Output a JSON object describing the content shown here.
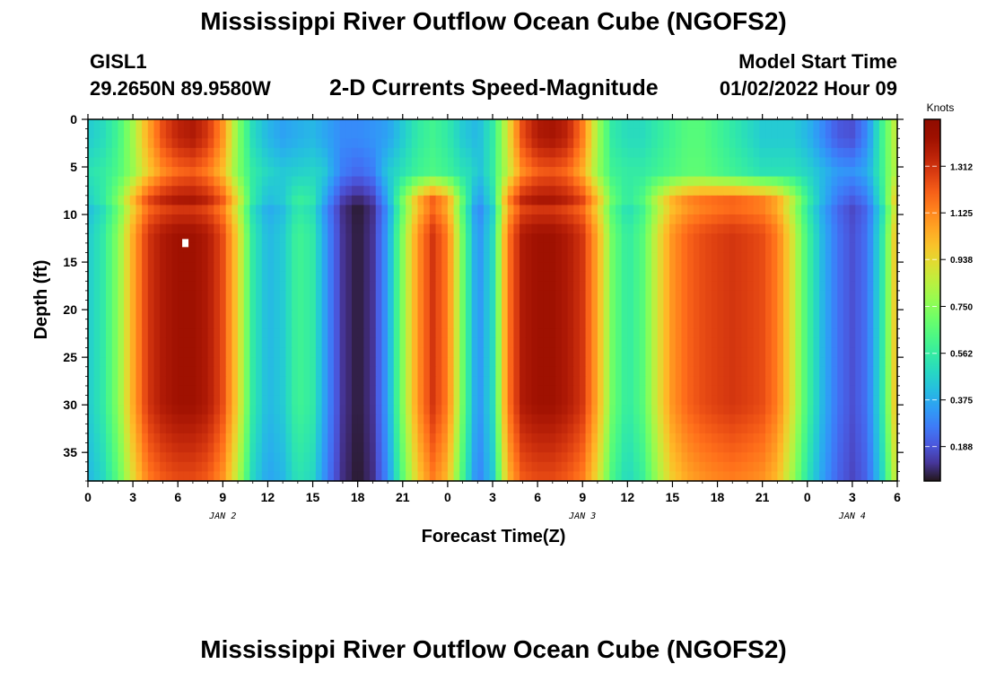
{
  "header": {
    "title": "Mississippi River Outflow Ocean Cube (NGOFS2)",
    "station": "GISL1",
    "coords": "29.2650N  89.9580W",
    "subtitle": "2-D Currents Speed-Magnitude",
    "start_label": "Model Start Time",
    "start_value": "01/02/2022 Hour 09"
  },
  "footer": {
    "title": "Mississippi River Outflow Ocean Cube (NGOFS2)"
  },
  "chart_data": {
    "type": "heatmap",
    "title": "2-D Currents Speed-Magnitude",
    "xlabel": "Forecast Time(Z)",
    "ylabel": "Depth (ft)",
    "colorbar_units": "Knots",
    "x_tick_labels": [
      "0",
      "3",
      "6",
      "9",
      "12",
      "15",
      "18",
      "21",
      "0",
      "3",
      "6",
      "9",
      "12",
      "15",
      "18",
      "21",
      "0",
      "3",
      "6"
    ],
    "day_labels": [
      {
        "label": "JAN 2",
        "at_hours": 9
      },
      {
        "label": "JAN 3",
        "at_hours": 33
      },
      {
        "label": "JAN 4",
        "at_hours": 51
      }
    ],
    "x_range_hours": [
      0,
      54
    ],
    "y_tick_labels": [
      "0",
      "5",
      "10",
      "15",
      "20",
      "25",
      "30",
      "35"
    ],
    "y_range_ft": [
      0,
      38
    ],
    "y_inverted": true,
    "colorbar_ticks": [
      0.188,
      0.375,
      0.562,
      0.75,
      0.938,
      1.125,
      1.312
    ],
    "colorbar_range": [
      0.05,
      1.5
    ],
    "colormap": "turbo",
    "speed_profile_by_hour": {
      "hours": [
        0,
        1,
        2,
        3,
        4,
        5,
        6,
        7,
        8,
        9,
        10,
        11,
        12,
        13,
        14,
        15,
        16,
        17,
        18,
        19,
        20,
        21,
        22,
        23,
        24,
        25,
        26,
        27,
        28,
        29,
        30,
        31,
        32,
        33,
        34,
        35,
        36,
        37,
        38,
        39,
        40,
        41,
        42,
        43,
        44,
        45,
        46,
        47,
        48,
        49,
        50,
        51,
        52,
        53,
        54
      ],
      "deep_knots": [
        0.45,
        0.55,
        0.75,
        1.05,
        1.3,
        1.38,
        1.42,
        1.42,
        1.38,
        1.25,
        0.95,
        0.55,
        0.4,
        0.45,
        0.6,
        0.55,
        0.3,
        0.12,
        0.06,
        0.12,
        0.35,
        0.75,
        1.1,
        1.3,
        1.15,
        0.7,
        0.3,
        0.5,
        1.15,
        1.38,
        1.42,
        1.42,
        1.38,
        1.3,
        1.05,
        0.7,
        0.55,
        0.65,
        0.9,
        1.1,
        1.2,
        1.25,
        1.28,
        1.3,
        1.28,
        1.25,
        1.15,
        0.9,
        0.6,
        0.4,
        0.25,
        0.18,
        0.25,
        0.55,
        1.05
      ],
      "surface_knots": [
        0.45,
        0.5,
        0.6,
        0.8,
        1.05,
        1.25,
        1.35,
        1.38,
        1.3,
        1.1,
        0.75,
        0.5,
        0.4,
        0.35,
        0.38,
        0.4,
        0.35,
        0.3,
        0.3,
        0.32,
        0.35,
        0.45,
        0.55,
        0.6,
        0.55,
        0.45,
        0.4,
        0.55,
        0.9,
        1.25,
        1.38,
        1.4,
        1.35,
        1.15,
        0.8,
        0.55,
        0.5,
        0.5,
        0.55,
        0.6,
        0.65,
        0.65,
        0.6,
        0.55,
        0.5,
        0.45,
        0.45,
        0.45,
        0.4,
        0.3,
        0.2,
        0.18,
        0.3,
        0.6,
        0.9
      ]
    }
  }
}
